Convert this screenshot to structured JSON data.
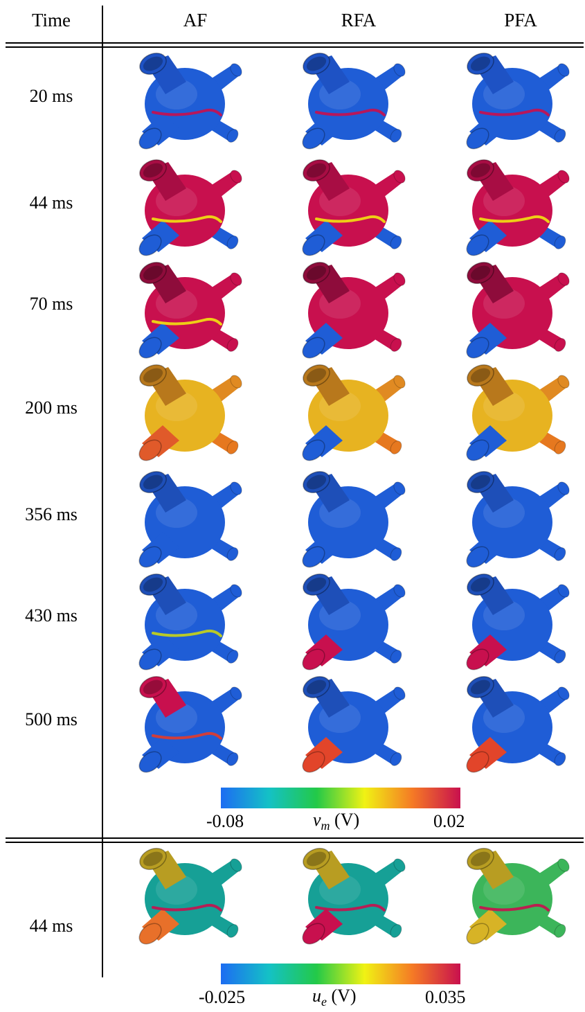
{
  "table": {
    "header": {
      "time": "Time",
      "columns": [
        "AF",
        "RFA",
        "PFA"
      ]
    },
    "rows": [
      {
        "time": "20 ms",
        "cells": [
          {
            "body": "#1f5dd6",
            "lsv": "#1e52c4",
            "rsv": "#1f5dd6",
            "li": "#1f5dd6",
            "ri": "#1f5dd6",
            "band": "#c8104e"
          },
          {
            "body": "#1f5dd6",
            "lsv": "#1e52c4",
            "rsv": "#1f5dd6",
            "li": "#1f5dd6",
            "ri": "#1f5dd6",
            "band": "#c8104e"
          },
          {
            "body": "#1f5dd6",
            "lsv": "#1e52c4",
            "rsv": "#1f5dd6",
            "li": "#1f5dd6",
            "ri": "#1f5dd6",
            "band": "#c8104e"
          }
        ]
      },
      {
        "time": "44 ms",
        "cells": [
          {
            "body": "#c8104e",
            "lsv": "#a80d44",
            "rsv": "#c8104e",
            "li": "#1f5dd6",
            "ri": "#1f5dd6",
            "band": "#f2e311"
          },
          {
            "body": "#c8104e",
            "lsv": "#a80d44",
            "rsv": "#c8104e",
            "li": "#1f5dd6",
            "ri": "#1f5dd6",
            "band": "#f2e311"
          },
          {
            "body": "#c8104e",
            "lsv": "#a80d44",
            "rsv": "#c8104e",
            "li": "#1f5dd6",
            "ri": "#1f5dd6",
            "band": "#f2e311"
          }
        ]
      },
      {
        "time": "70 ms",
        "cells": [
          {
            "body": "#c8104e",
            "lsv": "#8e0c3b",
            "rsv": "#c8104e",
            "li": "#1f5dd6",
            "ri": "#c8104e",
            "band": "#f2e311"
          },
          {
            "body": "#c8104e",
            "lsv": "#8e0c3b",
            "rsv": "#c8104e",
            "li": "#1f5dd6",
            "ri": "#c8104e",
            "band": ""
          },
          {
            "body": "#c8104e",
            "lsv": "#8e0c3b",
            "rsv": "#c8104e",
            "li": "#1f5dd6",
            "ri": "#c8104e",
            "band": ""
          }
        ]
      },
      {
        "time": "200 ms",
        "cells": [
          {
            "body": "#e7b321",
            "lsv": "#b8781c",
            "rsv": "#e08a22",
            "li": "#e05a2a",
            "ri": "#e6781f",
            "band": ""
          },
          {
            "body": "#e7b321",
            "lsv": "#b8781c",
            "rsv": "#e08a22",
            "li": "#1f5dd6",
            "ri": "#e6781f",
            "band": ""
          },
          {
            "body": "#e7b321",
            "lsv": "#b8781c",
            "rsv": "#e08a22",
            "li": "#1f5dd6",
            "ri": "#e6781f",
            "band": ""
          }
        ]
      },
      {
        "time": "356 ms",
        "cells": [
          {
            "body": "#1f5dd6",
            "lsv": "#1e4fb8",
            "rsv": "#1f5dd6",
            "li": "#1f5dd6",
            "ri": "#1f5dd6",
            "band": ""
          },
          {
            "body": "#1f5dd6",
            "lsv": "#1e4fb8",
            "rsv": "#1f5dd6",
            "li": "#1f5dd6",
            "ri": "#1f5dd6",
            "band": ""
          },
          {
            "body": "#1f5dd6",
            "lsv": "#1e4fb8",
            "rsv": "#1f5dd6",
            "li": "#1f5dd6",
            "ri": "#1f5dd6",
            "band": ""
          }
        ]
      },
      {
        "time": "430 ms",
        "cells": [
          {
            "body": "#1f5dd6",
            "lsv": "#1e4fb8",
            "rsv": "#1f5dd6",
            "li": "#1f5dd6",
            "ri": "#1f5dd6",
            "band": "#c9d515"
          },
          {
            "body": "#1f5dd6",
            "lsv": "#1e4fb8",
            "rsv": "#1f5dd6",
            "li": "#c8104e",
            "ri": "#1f5dd6",
            "band": ""
          },
          {
            "body": "#1f5dd6",
            "lsv": "#1e4fb8",
            "rsv": "#1f5dd6",
            "li": "#c8104e",
            "ri": "#1f5dd6",
            "band": ""
          }
        ]
      },
      {
        "time": "500 ms",
        "cells": [
          {
            "body": "#1f5dd6",
            "lsv": "#c8104e",
            "rsv": "#1f5dd6",
            "li": "#1f5dd6",
            "ri": "#1f5dd6",
            "band": "#e33b2a"
          },
          {
            "body": "#1f5dd6",
            "lsv": "#1e4fb8",
            "rsv": "#1f5dd6",
            "li": "#e2452a",
            "ri": "#1f5dd6",
            "band": ""
          },
          {
            "body": "#1f5dd6",
            "lsv": "#1e4fb8",
            "rsv": "#1f5dd6",
            "li": "#e2452a",
            "ri": "#1f5dd6",
            "band": ""
          }
        ]
      }
    ],
    "extracellular_row": {
      "time": "44 ms",
      "cells": [
        {
          "body": "#16a096",
          "lsv": "#b89d22",
          "rsv": "#16a096",
          "li": "#e8702a",
          "ri": "#16a096",
          "band": "#c8104e"
        },
        {
          "body": "#16a096",
          "lsv": "#b89d22",
          "rsv": "#16a096",
          "li": "#c8104e",
          "ri": "#16a096",
          "band": "#c8104e"
        },
        {
          "body": "#3cb55a",
          "lsv": "#b89d22",
          "rsv": "#3cb55a",
          "li": "#d7b326",
          "ri": "#3cb55a",
          "band": "#c8104e"
        }
      ]
    }
  },
  "colorbar_vm": {
    "min": "-0.08",
    "max": "0.02",
    "symbol": "v",
    "subscript": "m",
    "unit": "(V)",
    "colors": [
      "#1d6cf2",
      "#14c1c6",
      "#23c948",
      "#f0f214",
      "#f57a25",
      "#c8104e"
    ]
  },
  "colorbar_ue": {
    "min": "-0.025",
    "max": "0.035",
    "symbol": "u",
    "subscript": "e",
    "unit": "(V)",
    "colors": [
      "#1d6cf2",
      "#14c1c6",
      "#23c948",
      "#f0f214",
      "#f57a25",
      "#c8104e"
    ]
  }
}
